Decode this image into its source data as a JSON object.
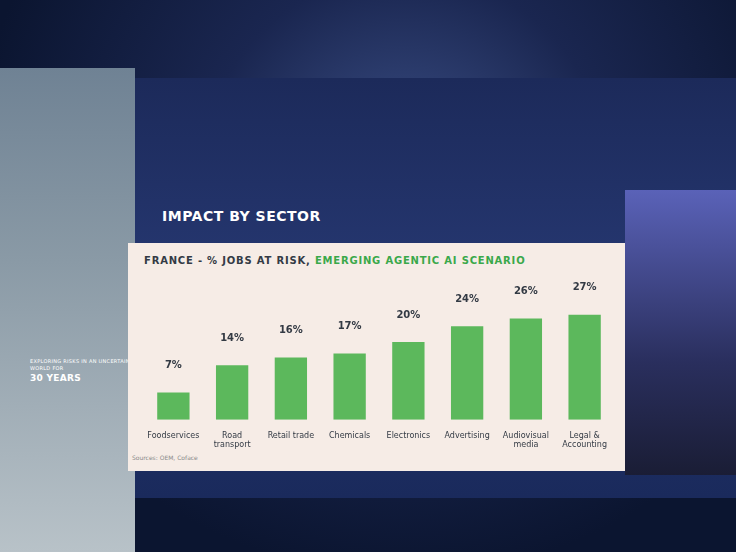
{
  "chart_data": {
    "type": "bar",
    "title": "IMPACT BY SECTOR",
    "subtitle": "FRANCE - % JOBS AT RISK, EMERGING AGENTIC AI SCENARIO",
    "categories": [
      "Foodservices",
      "Road transport",
      "Retail trade",
      "Chemicals",
      "Electronics",
      "Advertising",
      "Audiovisual media",
      "Legal & Accounting"
    ],
    "values": [
      7,
      14,
      16,
      17,
      20,
      24,
      26,
      27
    ],
    "value_labels": [
      "7%",
      "14%",
      "16%",
      "17%",
      "20%",
      "24%",
      "26%",
      "27%"
    ],
    "color": "#5cb85c",
    "ylim": [
      0,
      30
    ],
    "grid": false,
    "data_labels": true,
    "tick_labels": "x",
    "annotations": [
      "Sources: OEM, Coface",
      "EXPLORING RISKS IN AN UNCERTAIN WORLD FOR",
      "30 YEARS"
    ]
  }
}
